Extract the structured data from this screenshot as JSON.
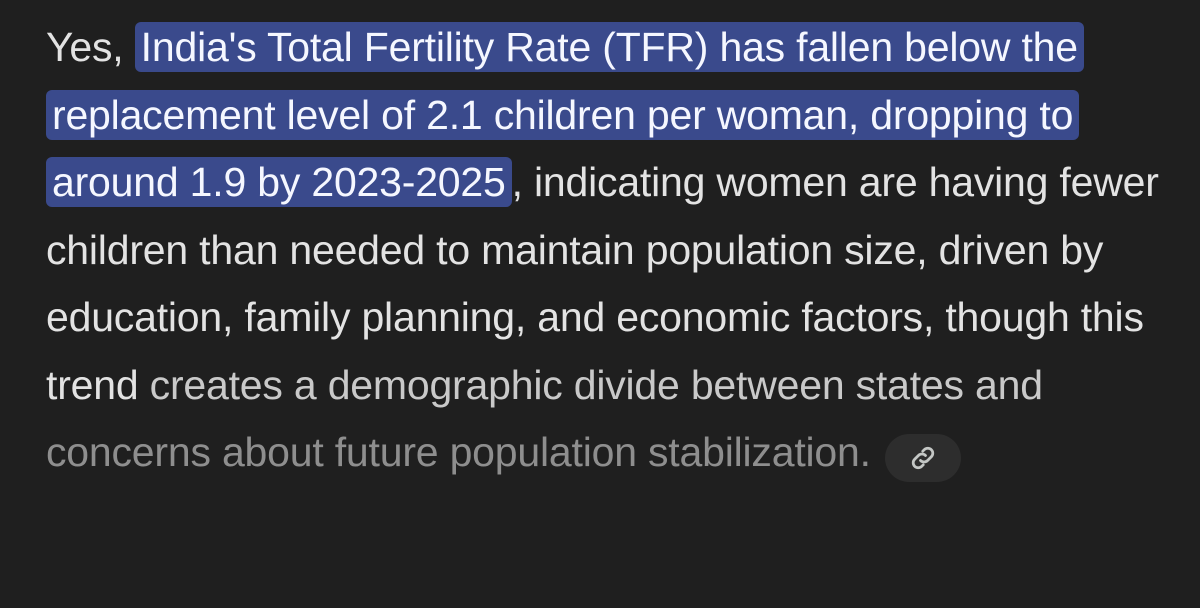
{
  "answer": {
    "lead": "Yes, ",
    "highlighted": "India's Total Fertility Rate (TFR) has fallen below the replacement level of 2.1 children per woman, dropping to around 1.9 by 2023-2025",
    "continuation": ", indicating women are having fewer children than needed to maintain population size, driven by education, family planning, and economic factors, though this trend",
    "fading": "creates a demographic divide between states and",
    "faded": "concerns about future population stabilization."
  },
  "source_chip": {
    "icon": "link-icon"
  },
  "colors": {
    "background": "#1f1f1f",
    "text": "#e3e3e3",
    "highlight": "#3a4a8c",
    "chip": "#2d2d2d"
  }
}
